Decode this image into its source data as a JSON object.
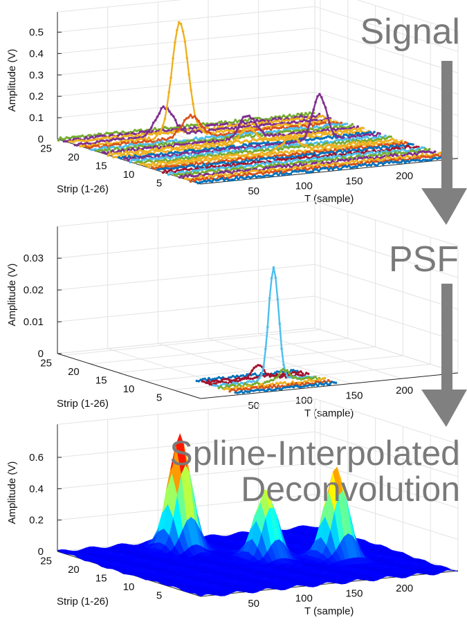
{
  "captions": {
    "signal": "Signal",
    "psf": "PSF",
    "deconv_line1": "Spline-Interpolated",
    "deconv_line2": "Deconvolution"
  },
  "colors": {
    "caption": "#7a7a7a",
    "arrow": "#808080",
    "series": [
      "#0072BD",
      "#D95319",
      "#EDB120",
      "#7E2F8E",
      "#77AC30",
      "#4DBEEE",
      "#A2142F"
    ]
  },
  "chart_data": [
    {
      "type": "line3d",
      "panel": "signal",
      "zlabel": "Amplitude (V)",
      "ylabel": "Strip (1-26)",
      "xlabel": "T (sample)",
      "zlim": [
        0,
        0.55
      ],
      "z_ticks": [
        "0",
        "0.1",
        "0.2",
        "0.3",
        "0.4",
        "0.5"
      ],
      "y_ticks": [
        "5",
        "10",
        "15",
        "20",
        "25"
      ],
      "x_ticks": [
        "50",
        "100",
        "150",
        "200"
      ],
      "strips": 26,
      "x_range": [
        1,
        256
      ],
      "peaks": [
        {
          "strip": 22,
          "t": 100,
          "amp": 0.53,
          "width": 8,
          "color": "#EDB120"
        },
        {
          "strip": 23,
          "t": 90,
          "amp": 0.13,
          "width": 9,
          "color": "#7E2F8E"
        },
        {
          "strip": 21,
          "t": 105,
          "amp": 0.1,
          "width": 9,
          "color": "#D95319"
        },
        {
          "strip": 18,
          "t": 145,
          "amp": 0.11,
          "width": 8,
          "color": "#7E2F8E"
        },
        {
          "strip": 16,
          "t": 135,
          "amp": 0.07,
          "width": 8,
          "color": "#EDB120"
        },
        {
          "strip": 14,
          "t": 195,
          "amp": 0.21,
          "width": 7,
          "color": "#7E2F8E"
        },
        {
          "strip": 11,
          "t": 150,
          "amp": 0.06,
          "width": 8,
          "color": "#EDB120"
        }
      ]
    },
    {
      "type": "line3d",
      "panel": "psf",
      "zlabel": "Amplitude (V)",
      "ylabel": "Strip (1-26)",
      "xlabel": "T (sample)",
      "zlim": [
        0,
        0.037
      ],
      "z_ticks": [
        "0",
        "0.01",
        "0.02",
        "0.03"
      ],
      "y_ticks": [
        "5",
        "10",
        "15",
        "20",
        "25"
      ],
      "x_ticks": [
        "50",
        "100",
        "150",
        "200"
      ],
      "strips_shown": [
        1,
        2,
        3,
        4,
        5,
        6,
        7,
        8
      ],
      "x_range": [
        40,
        140
      ],
      "peaks": [
        {
          "strip": 5,
          "t": 100,
          "amp": 0.035,
          "width": 5,
          "color": "#4DBEEE"
        },
        {
          "strip": 6,
          "t": 90,
          "amp": 0.0045,
          "width": 6,
          "color": "#A2142F"
        },
        {
          "strip": 4,
          "t": 105,
          "amp": 0.0035,
          "width": 6,
          "color": "#77AC30"
        }
      ]
    },
    {
      "type": "surface",
      "panel": "deconvolution",
      "zlabel": "Amplitude (V)",
      "ylabel": "Strip (1-26)",
      "xlabel": "T (sample)",
      "zlim": [
        0,
        0.75
      ],
      "z_ticks": [
        "0",
        "0.2",
        "0.4",
        "0.6"
      ],
      "y_ticks": [
        "5",
        "10",
        "15",
        "20",
        "25"
      ],
      "x_ticks": [
        "50",
        "100",
        "150",
        "200"
      ],
      "colormap": "jet",
      "peaks": [
        {
          "strip": 22,
          "t": 100,
          "amp": 0.72
        },
        {
          "strip": 14,
          "t": 142,
          "amp": 0.44
        },
        {
          "strip": 11,
          "t": 195,
          "amp": 0.58
        }
      ]
    }
  ]
}
